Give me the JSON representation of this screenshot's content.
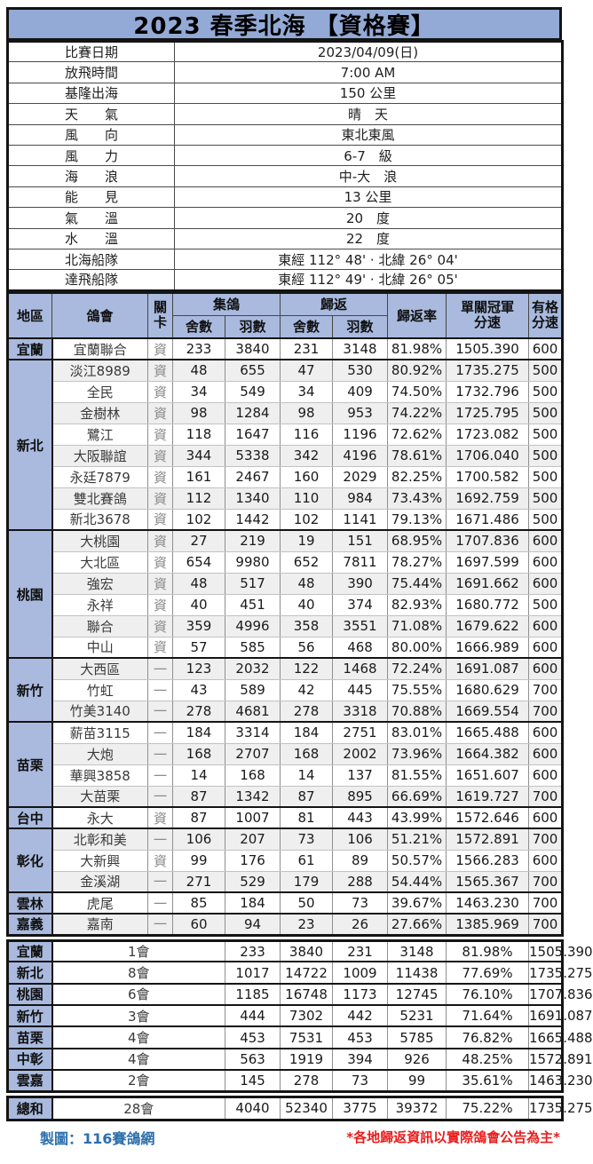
{
  "title": "2023 春季北海 【資格賽】",
  "info": {
    "rows": [
      {
        "label": "比賽日期",
        "value": "2023/04/09(日)"
      },
      {
        "label": "放飛時間",
        "value": "7:00 AM"
      },
      {
        "label": "基隆出海",
        "value": "150 公里"
      },
      {
        "label": "天　　氣",
        "value": "晴　天"
      },
      {
        "label": "風　　向",
        "value": "東北東風"
      },
      {
        "label": "風　　力",
        "value": "6-7　級"
      },
      {
        "label": "海　　浪",
        "value": "中-大　浪"
      },
      {
        "label": "能　　見",
        "value": "13 公里"
      },
      {
        "label": "氣　　溫",
        "value": "20　度"
      },
      {
        "label": "水　　溫",
        "value": "22　度"
      },
      {
        "label": "北海船隊",
        "value": "東經 112°  48' ‧ 北緯 26°  04'"
      },
      {
        "label": "達飛船隊",
        "value": "東經 112°  49' ‧ 北緯 26°  05'"
      }
    ]
  },
  "table": {
    "headers": {
      "region": "地區",
      "club": "鴿會",
      "gate": "關\n卡",
      "collect": "集鴿",
      "return": "歸返",
      "sheds": "舍數",
      "birds": "羽數",
      "rate": "歸返率",
      "champion_speed": "單關冠軍\n分速",
      "grade_speed": "有格\n分速"
    },
    "groups": [
      {
        "region": "宜蘭",
        "rows": [
          [
            "宜蘭聯合",
            "資",
            "233",
            "3840",
            "231",
            "3148",
            "81.98%",
            "1505.390",
            "600"
          ]
        ]
      },
      {
        "region": "新北",
        "rows": [
          [
            "淡江8989",
            "資",
            "48",
            "655",
            "47",
            "530",
            "80.92%",
            "1735.275",
            "500"
          ],
          [
            "全民",
            "資",
            "34",
            "549",
            "34",
            "409",
            "74.50%",
            "1732.796",
            "500"
          ],
          [
            "金樹林",
            "資",
            "98",
            "1284",
            "98",
            "953",
            "74.22%",
            "1725.795",
            "500"
          ],
          [
            "鷺江",
            "資",
            "118",
            "1647",
            "116",
            "1196",
            "72.62%",
            "1723.082",
            "500"
          ],
          [
            "大阪聯誼",
            "資",
            "344",
            "5338",
            "342",
            "4196",
            "78.61%",
            "1706.040",
            "500"
          ],
          [
            "永廷7879",
            "資",
            "161",
            "2467",
            "160",
            "2029",
            "82.25%",
            "1700.582",
            "500"
          ],
          [
            "雙北賽鴿",
            "資",
            "112",
            "1340",
            "110",
            "984",
            "73.43%",
            "1692.759",
            "500"
          ],
          [
            "新北3678",
            "資",
            "102",
            "1442",
            "102",
            "1141",
            "79.13%",
            "1671.486",
            "500"
          ]
        ]
      },
      {
        "region": "桃園",
        "rows": [
          [
            "大桃園",
            "資",
            "27",
            "219",
            "19",
            "151",
            "68.95%",
            "1707.836",
            "600"
          ],
          [
            "大北區",
            "資",
            "654",
            "9980",
            "652",
            "7811",
            "78.27%",
            "1697.599",
            "600"
          ],
          [
            "強宏",
            "資",
            "48",
            "517",
            "48",
            "390",
            "75.44%",
            "1691.662",
            "600"
          ],
          [
            "永祥",
            "資",
            "40",
            "451",
            "40",
            "374",
            "82.93%",
            "1680.772",
            "500"
          ],
          [
            "聯合",
            "資",
            "359",
            "4996",
            "358",
            "3551",
            "71.08%",
            "1679.622",
            "600"
          ],
          [
            "中山",
            "資",
            "57",
            "585",
            "56",
            "468",
            "80.00%",
            "1666.989",
            "600"
          ]
        ]
      },
      {
        "region": "新竹",
        "rows": [
          [
            "大西區",
            "一",
            "123",
            "2032",
            "122",
            "1468",
            "72.24%",
            "1691.087",
            "600"
          ],
          [
            "竹虹",
            "一",
            "43",
            "589",
            "42",
            "445",
            "75.55%",
            "1680.629",
            "700"
          ],
          [
            "竹美3140",
            "一",
            "278",
            "4681",
            "278",
            "3318",
            "70.88%",
            "1669.554",
            "700"
          ]
        ]
      },
      {
        "region": "苗栗",
        "rows": [
          [
            "薪苗3115",
            "一",
            "184",
            "3314",
            "184",
            "2751",
            "83.01%",
            "1665.488",
            "600"
          ],
          [
            "大炮",
            "一",
            "168",
            "2707",
            "168",
            "2002",
            "73.96%",
            "1664.382",
            "600"
          ],
          [
            "華興3858",
            "一",
            "14",
            "168",
            "14",
            "137",
            "81.55%",
            "1651.607",
            "600"
          ],
          [
            "大苗栗",
            "一",
            "87",
            "1342",
            "87",
            "895",
            "66.69%",
            "1619.727",
            "700"
          ]
        ]
      },
      {
        "region": "台中",
        "rows": [
          [
            "永大",
            "資",
            "87",
            "1007",
            "81",
            "443",
            "43.99%",
            "1572.646",
            "600"
          ]
        ]
      },
      {
        "region": "彰化",
        "rows": [
          [
            "北彰和美",
            "一",
            "106",
            "207",
            "73",
            "106",
            "51.21%",
            "1572.891",
            "700"
          ],
          [
            "大新興",
            "資",
            "99",
            "176",
            "61",
            "89",
            "50.57%",
            "1566.283",
            "600"
          ],
          [
            "金溪湖",
            "一",
            "271",
            "529",
            "179",
            "288",
            "54.44%",
            "1565.367",
            "700"
          ]
        ]
      },
      {
        "region": "雲林",
        "rows": [
          [
            "虎尾",
            "一",
            "85",
            "184",
            "50",
            "73",
            "39.67%",
            "1463.230",
            "700"
          ]
        ]
      },
      {
        "region": "嘉義",
        "rows": [
          [
            "嘉南",
            "一",
            "60",
            "94",
            "23",
            "26",
            "27.66%",
            "1385.969",
            "700"
          ]
        ]
      }
    ],
    "summary": [
      [
        "宜蘭",
        "1會",
        "233",
        "3840",
        "231",
        "3148",
        "81.98%",
        "1505.390"
      ],
      [
        "新北",
        "8會",
        "1017",
        "14722",
        "1009",
        "11438",
        "77.69%",
        "1735.275"
      ],
      [
        "桃園",
        "6會",
        "1185",
        "16748",
        "1173",
        "12745",
        "76.10%",
        "1707.836"
      ],
      [
        "新竹",
        "3會",
        "444",
        "7302",
        "442",
        "5231",
        "71.64%",
        "1691.087"
      ],
      [
        "苗栗",
        "4會",
        "453",
        "7531",
        "453",
        "5785",
        "76.82%",
        "1665.488"
      ],
      [
        "中彰",
        "4會",
        "563",
        "1919",
        "394",
        "926",
        "48.25%",
        "1572.891"
      ],
      [
        "雲嘉",
        "2會",
        "145",
        "278",
        "73",
        "99",
        "35.61%",
        "1463.230"
      ]
    ],
    "total": [
      "總和",
      "28會",
      "4040",
      "52340",
      "3775",
      "39372",
      "75.22%",
      "1735.275"
    ]
  },
  "footer": {
    "credit": "製圖：116賽鴿網",
    "note": "*各地歸返資訊以實際鴿會公告為主*"
  },
  "colors": {
    "banner_blue": "#94aad6",
    "header_blue": "#a9bade",
    "stripe_gray": "#efefef",
    "credit_blue": "#2c6fad",
    "note_red": "#ea1c1c"
  }
}
